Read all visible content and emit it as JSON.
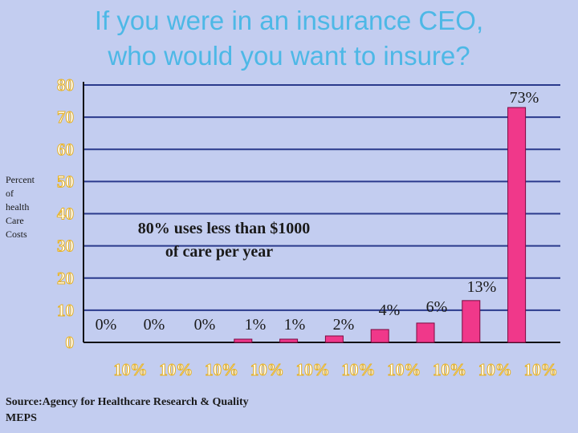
{
  "chart_data": {
    "type": "bar",
    "title_lines": [
      "If you were in an insurance CEO,",
      "who would you want to insure?"
    ],
    "ylabel_lines": [
      "Percent",
      "of",
      "health",
      "Care",
      "Costs"
    ],
    "categories": [
      "10%",
      "10%",
      "10%",
      "10%",
      "10%",
      "10%",
      "10%",
      "10%",
      "10%",
      "10%"
    ],
    "values": [
      0,
      0,
      0,
      1,
      1,
      2,
      4,
      6,
      13,
      73
    ],
    "data_labels": [
      "0%",
      "0%",
      "0%",
      "1%",
      "1%",
      "2%",
      "4%",
      "6%",
      "13%",
      "73%"
    ],
    "yticks": [
      "0",
      "10",
      "20",
      "30",
      "40",
      "50",
      "60",
      "70",
      "80"
    ],
    "ylim": [
      0,
      80
    ],
    "grid": true,
    "bar_color": "#f0388a",
    "grid_color": "#2a3a8c",
    "annotation_lines": [
      "80% uses less than $1000",
      "of care per year"
    ],
    "source_lines": [
      "Source:Agency for Healthcare Research & Quality",
      "MEPS"
    ]
  }
}
